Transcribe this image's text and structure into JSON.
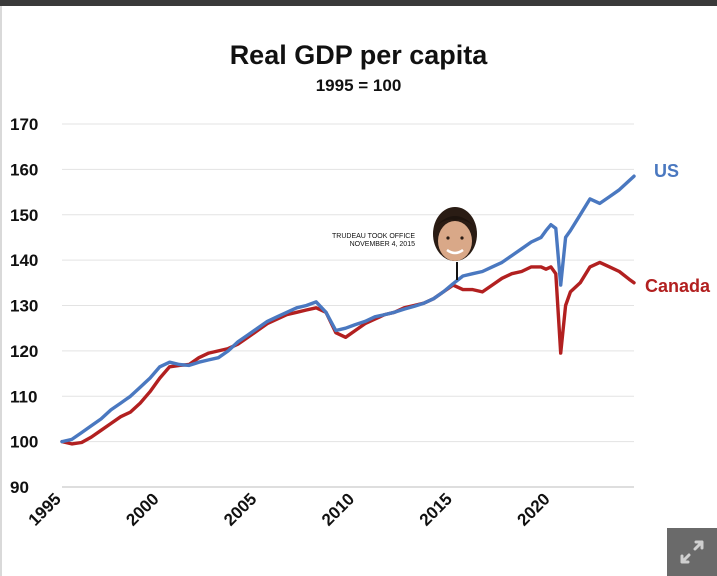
{
  "chart_data": {
    "type": "line",
    "title": "Real GDP per capita",
    "subtitle": "1995 = 100",
    "xlabel": "",
    "ylabel": "",
    "xlim": [
      1995,
      2024.25
    ],
    "ylim": [
      90,
      170
    ],
    "y_ticks": [
      170,
      160,
      150,
      140,
      130,
      120,
      110,
      100,
      90
    ],
    "x_ticks": [
      1995,
      2000,
      2005,
      2010,
      2015,
      2020
    ],
    "grid": true,
    "series": [
      {
        "name": "US",
        "color": "#4a78c0",
        "x": [
          1995,
          1995.5,
          1996,
          1996.5,
          1997,
          1997.5,
          1998,
          1998.5,
          1999,
          1999.5,
          2000,
          2000.5,
          2001,
          2001.5,
          2002,
          2002.5,
          2003,
          2003.5,
          2004,
          2004.5,
          2005,
          2005.5,
          2006,
          2006.5,
          2007,
          2007.5,
          2008,
          2008.5,
          2009,
          2009.5,
          2010,
          2010.5,
          2011,
          2011.5,
          2012,
          2012.5,
          2013,
          2013.5,
          2014,
          2014.5,
          2015,
          2015.5,
          2016,
          2016.5,
          2017,
          2017.5,
          2018,
          2018.5,
          2019,
          2019.5,
          2019.75,
          2020,
          2020.25,
          2020.5,
          2020.75,
          2021,
          2021.5,
          2022,
          2022.5,
          2023,
          2023.5,
          2024,
          2024.25
        ],
        "values": [
          100,
          100.5,
          102,
          103.5,
          105,
          107,
          108.5,
          110,
          112,
          114,
          116.5,
          117.5,
          117,
          116.8,
          117.5,
          118,
          118.5,
          120,
          122,
          123.5,
          125,
          126.5,
          127.5,
          128.5,
          129.5,
          130,
          130.8,
          128.5,
          124.5,
          125,
          125.8,
          126.5,
          127.5,
          128,
          128.5,
          129.2,
          129.8,
          130.5,
          131.5,
          133,
          134.8,
          136.5,
          137,
          137.5,
          138.5,
          139.5,
          141,
          142.5,
          144,
          145,
          146.5,
          147.8,
          147,
          134.5,
          145,
          146.5,
          150,
          153.5,
          152.5,
          154,
          155.5,
          157.5,
          158.5
        ]
      },
      {
        "name": "Canada",
        "color": "#b22020",
        "x": [
          1995,
          1995.5,
          1996,
          1996.5,
          1997,
          1997.5,
          1998,
          1998.5,
          1999,
          1999.5,
          2000,
          2000.5,
          2001,
          2001.5,
          2002,
          2002.5,
          2003,
          2003.5,
          2004,
          2004.5,
          2005,
          2005.5,
          2006,
          2006.5,
          2007,
          2007.5,
          2008,
          2008.5,
          2009,
          2009.5,
          2010,
          2010.5,
          2011,
          2011.5,
          2012,
          2012.5,
          2013,
          2013.5,
          2014,
          2014.5,
          2015,
          2015.5,
          2016,
          2016.5,
          2017,
          2017.5,
          2018,
          2018.5,
          2019,
          2019.5,
          2019.75,
          2020,
          2020.25,
          2020.5,
          2020.75,
          2021,
          2021.5,
          2022,
          2022.5,
          2023,
          2023.5,
          2024,
          2024.25
        ],
        "values": [
          100,
          99.5,
          99.8,
          101,
          102.5,
          104,
          105.5,
          106.5,
          108.5,
          111,
          114,
          116.5,
          116.8,
          117,
          118.5,
          119.5,
          120,
          120.5,
          121.5,
          123,
          124.5,
          126,
          127,
          128,
          128.5,
          129,
          129.5,
          128.5,
          124,
          123,
          124.5,
          126,
          127,
          128,
          128.5,
          129.5,
          130,
          130.5,
          131.5,
          133,
          134.5,
          133.5,
          133.5,
          133,
          134.5,
          136,
          137,
          137.5,
          138.5,
          138.5,
          138,
          138.5,
          137,
          119.5,
          130,
          133,
          135,
          138.5,
          139.5,
          138.5,
          137.5,
          135.8,
          135
        ]
      }
    ],
    "annotations": [
      {
        "label_line1": "TRUDEAU TOOK OFFICE",
        "label_line2": "NOVEMBER 4, 2015",
        "x": 2015.0,
        "y": 134.5
      }
    ]
  }
}
